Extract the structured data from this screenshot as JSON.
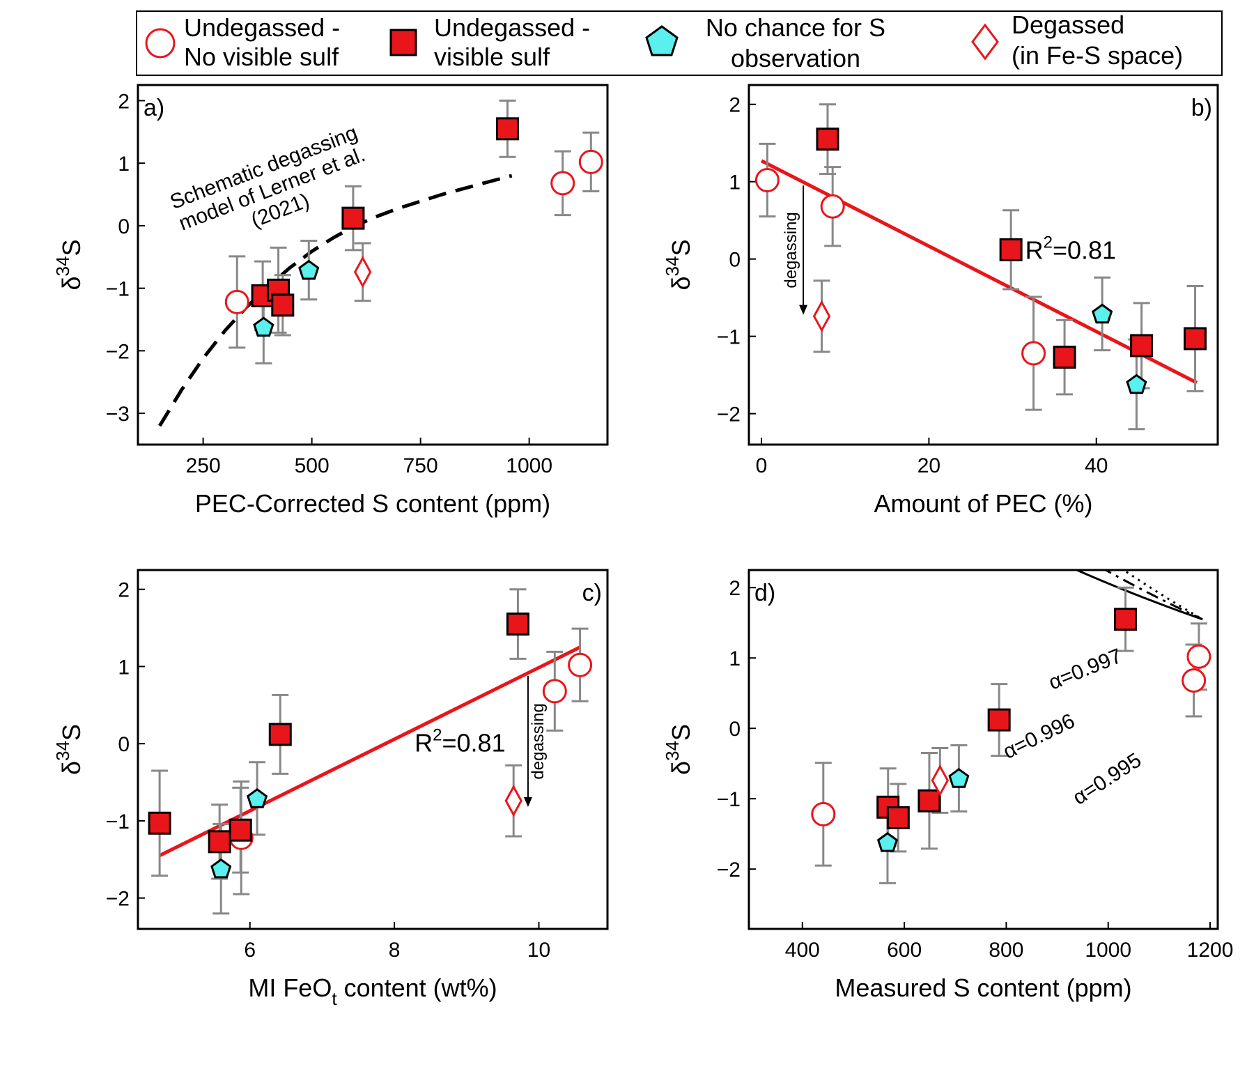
{
  "legend": {
    "entries": [
      {
        "key": "undeg_novis",
        "line1": "Undegassed -",
        "line2": "No visible sulf",
        "marker": "circle-open",
        "color": "#e8161b"
      },
      {
        "key": "undeg_vis",
        "line1": "Undegassed -",
        "line2": "visible sulf",
        "marker": "square-filled",
        "color": "#e8161b"
      },
      {
        "key": "nochance",
        "line1": "No chance for S",
        "line2": "observation",
        "marker": "pentagon",
        "color": "#59f0ee"
      },
      {
        "key": "degassed",
        "line1": "Degassed",
        "line2": "(in Fe-S space)",
        "marker": "diamond-open",
        "color": "#e8161b"
      }
    ]
  },
  "colors": {
    "red": "#e8161b",
    "cyan": "#59f0ee",
    "errorbar": "#888888",
    "fit_line": "#e8161b"
  },
  "chart_data": [
    {
      "id": "a",
      "panel_label": "a)",
      "type": "scatter",
      "xlabel": "PEC-Corrected S content (ppm)",
      "ylabel": "δ34S",
      "xlim": [
        100,
        1180
      ],
      "ylim": [
        -3.5,
        2.25
      ],
      "xticks": [
        250,
        500,
        750,
        1000
      ],
      "yticks": [
        -3,
        -2,
        -1,
        0,
        1,
        2
      ],
      "points": [
        {
          "group": "undeg_novis",
          "x": 328,
          "y": -1.22,
          "err": 0.73
        },
        {
          "group": "undeg_novis",
          "x": 1077,
          "y": 0.68,
          "err": 0.51
        },
        {
          "group": "undeg_novis",
          "x": 1142,
          "y": 1.02,
          "err": 0.47
        },
        {
          "group": "undeg_vis",
          "x": 387,
          "y": -1.12,
          "err": 0.55
        },
        {
          "group": "undeg_vis",
          "x": 423,
          "y": -1.03,
          "err": 0.68
        },
        {
          "group": "undeg_vis",
          "x": 433,
          "y": -1.27,
          "err": 0.48
        },
        {
          "group": "undeg_vis",
          "x": 595,
          "y": 0.12,
          "err": 0.51
        },
        {
          "group": "undeg_vis",
          "x": 950,
          "y": 1.55,
          "err": 0.45
        },
        {
          "group": "nochance",
          "x": 389,
          "y": -1.62,
          "err": 0.58
        },
        {
          "group": "nochance",
          "x": 493,
          "y": -0.71,
          "err": 0.47
        },
        {
          "group": "degassed",
          "x": 617,
          "y": -0.74,
          "err": 0.46
        }
      ],
      "curve": {
        "style": "dashed",
        "color": "#000000",
        "x": [
          150,
          200,
          250,
          300,
          350,
          400,
          450,
          500,
          550,
          600,
          650,
          700,
          800,
          900,
          960
        ],
        "y": [
          -3.2,
          -2.63,
          -2.12,
          -1.68,
          -1.3,
          -0.97,
          -0.67,
          -0.41,
          -0.19,
          0.0,
          0.15,
          0.28,
          0.5,
          0.69,
          0.8
        ]
      },
      "annotations": [
        {
          "lines": [
            "Schematic degassing",
            "model of Lerner et al.",
            "(2021)"
          ],
          "x": 395,
          "y": 0.83,
          "rotate": -21
        }
      ]
    },
    {
      "id": "b",
      "panel_label": "b)",
      "type": "scatter",
      "xlabel": "Amount of PEC (%)",
      "ylabel": "δ34S",
      "xlim": [
        -1.5,
        54.5
      ],
      "ylim": [
        -2.4,
        2.25
      ],
      "xticks": [
        0,
        20,
        40
      ],
      "yticks": [
        -2,
        -1,
        0,
        1,
        2
      ],
      "points": [
        {
          "group": "undeg_novis",
          "x": 0.7,
          "y": 1.02,
          "err": 0.47
        },
        {
          "group": "undeg_novis",
          "x": 8.5,
          "y": 0.68,
          "err": 0.51
        },
        {
          "group": "undeg_novis",
          "x": 32.5,
          "y": -1.22,
          "err": 0.73
        },
        {
          "group": "undeg_vis",
          "x": 7.9,
          "y": 1.55,
          "err": 0.45
        },
        {
          "group": "undeg_vis",
          "x": 29.8,
          "y": 0.12,
          "err": 0.51
        },
        {
          "group": "undeg_vis",
          "x": 36.2,
          "y": -1.27,
          "err": 0.48
        },
        {
          "group": "undeg_vis",
          "x": 45.4,
          "y": -1.12,
          "err": 0.55
        },
        {
          "group": "undeg_vis",
          "x": 51.8,
          "y": -1.03,
          "err": 0.68
        },
        {
          "group": "nochance",
          "x": 40.7,
          "y": -0.71,
          "err": 0.47
        },
        {
          "group": "nochance",
          "x": 44.8,
          "y": -1.62,
          "err": 0.58
        },
        {
          "group": "degassed",
          "x": 7.2,
          "y": -0.74,
          "err": 0.46
        }
      ],
      "fit": {
        "x": [
          0,
          52
        ],
        "y": [
          1.27,
          -1.6
        ],
        "r2_text": "R",
        "r2_sup": "2",
        "r2_value": "=0.81",
        "label_x": 31.5,
        "label_y": 0.0
      },
      "arrow": {
        "text": "degassing",
        "x": 5.0,
        "y_from": 0.95,
        "y_to": -0.72
      }
    },
    {
      "id": "c",
      "panel_label": "c)",
      "type": "scatter",
      "xlabel_main": "MI FeO",
      "xlabel_sub": "t",
      "xlabel_tail": " content (wt%)",
      "ylabel": "δ34S",
      "xlim": [
        4.45,
        10.95
      ],
      "ylim": [
        -2.4,
        2.25
      ],
      "xticks": [
        6,
        8,
        10
      ],
      "yticks": [
        -2,
        -1,
        0,
        1,
        2
      ],
      "points": [
        {
          "group": "undeg_novis",
          "x": 5.88,
          "y": -1.22,
          "err": 0.73
        },
        {
          "group": "undeg_novis",
          "x": 10.22,
          "y": 0.68,
          "err": 0.51
        },
        {
          "group": "undeg_novis",
          "x": 10.57,
          "y": 1.02,
          "err": 0.47
        },
        {
          "group": "undeg_vis",
          "x": 4.75,
          "y": -1.03,
          "err": 0.68
        },
        {
          "group": "undeg_vis",
          "x": 5.58,
          "y": -1.27,
          "err": 0.48
        },
        {
          "group": "undeg_vis",
          "x": 5.87,
          "y": -1.12,
          "err": 0.55
        },
        {
          "group": "undeg_vis",
          "x": 6.42,
          "y": 0.12,
          "err": 0.51
        },
        {
          "group": "undeg_vis",
          "x": 9.71,
          "y": 1.55,
          "err": 0.45
        },
        {
          "group": "nochance",
          "x": 5.6,
          "y": -1.62,
          "err": 0.58
        },
        {
          "group": "nochance",
          "x": 6.1,
          "y": -0.71,
          "err": 0.47
        },
        {
          "group": "degassed",
          "x": 9.65,
          "y": -0.74,
          "err": 0.46
        }
      ],
      "fit": {
        "x": [
          4.75,
          10.57
        ],
        "y": [
          -1.45,
          1.25
        ],
        "r2_text": "R",
        "r2_sup": "2",
        "r2_value": "=0.81",
        "label_x": 8.28,
        "label_y": -0.1
      },
      "arrow": {
        "text": "degassing",
        "x": 9.85,
        "y_from": 0.88,
        "y_to": -0.82
      }
    },
    {
      "id": "d",
      "panel_label": "d)",
      "type": "scatter",
      "xlabel": "Measured S content (ppm)",
      "ylabel": "δ34S",
      "xlim": [
        295,
        1215
      ],
      "ylim": [
        -2.85,
        2.25
      ],
      "xticks": [
        400,
        600,
        800,
        1000,
        1200
      ],
      "yticks": [
        -2,
        -1,
        0,
        1,
        2
      ],
      "points": [
        {
          "group": "undeg_novis",
          "x": 441,
          "y": -1.22,
          "err": 0.73
        },
        {
          "group": "undeg_novis",
          "x": 1168,
          "y": 0.68,
          "err": 0.51
        },
        {
          "group": "undeg_novis",
          "x": 1178,
          "y": 1.02,
          "err": 0.47
        },
        {
          "group": "undeg_vis",
          "x": 568,
          "y": -1.12,
          "err": 0.55
        },
        {
          "group": "undeg_vis",
          "x": 588,
          "y": -1.27,
          "err": 0.48
        },
        {
          "group": "undeg_vis",
          "x": 649,
          "y": -1.03,
          "err": 0.68
        },
        {
          "group": "undeg_vis",
          "x": 786,
          "y": 0.12,
          "err": 0.51
        },
        {
          "group": "undeg_vis",
          "x": 1034,
          "y": 1.55,
          "err": 0.45
        },
        {
          "group": "nochance",
          "x": 567,
          "y": -1.62,
          "err": 0.58
        },
        {
          "group": "nochance",
          "x": 707,
          "y": -0.71,
          "err": 0.47
        },
        {
          "group": "degassed",
          "x": 670,
          "y": -0.74,
          "err": 0.46
        }
      ],
      "curves": [
        {
          "label": "α=0.997",
          "style": "solid",
          "x0": 1185,
          "y0": 1.55,
          "alpha": 0.997,
          "x_min": 340,
          "label_x": 960,
          "label_y": 0.75,
          "label_rot": -22
        },
        {
          "label": "α=0.996",
          "style": "dashdot",
          "x0": 1185,
          "y0": 1.55,
          "alpha": 0.996,
          "x_min": 340,
          "label_x": 870,
          "label_y": -0.2,
          "label_rot": -26
        },
        {
          "label": "α=0.995",
          "style": "dotted",
          "x0": 1185,
          "y0": 1.55,
          "alpha": 0.995,
          "x_min": 340,
          "label_x": 1005,
          "label_y": -0.8,
          "label_rot": -33
        }
      ]
    }
  ]
}
